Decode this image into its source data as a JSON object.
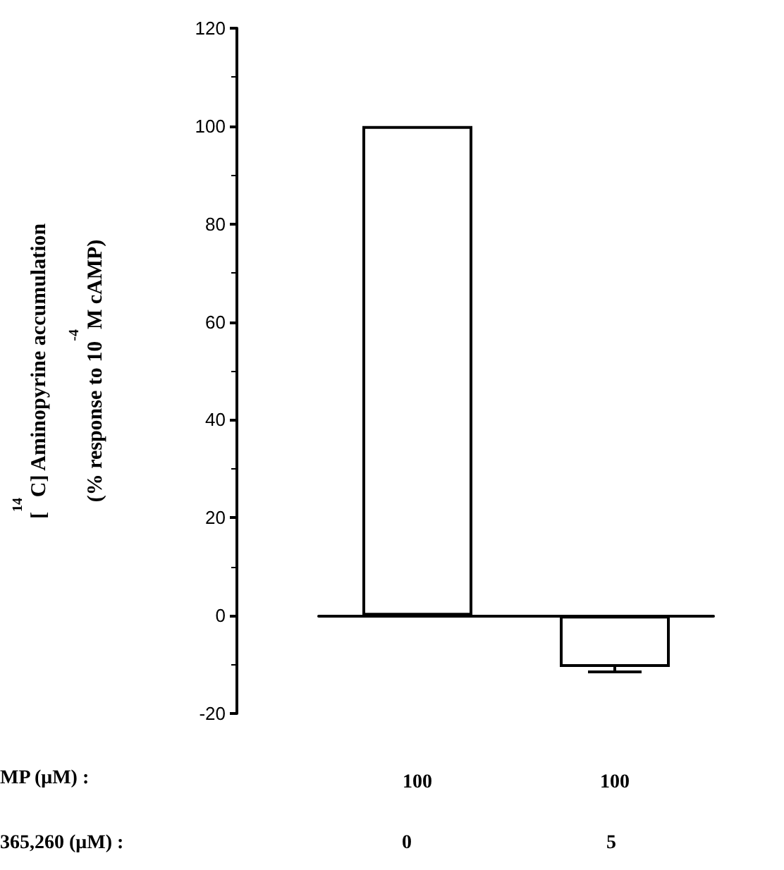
{
  "chart_data": {
    "type": "bar",
    "ylabel": "[$^{14}$C] Aminopyrine accumulation\n(% response to 10$^{-4}$M cAMP)",
    "categories": [
      "100",
      "100"
    ],
    "values": [
      100,
      -10.5
    ],
    "errors": [
      null,
      [
        -11.5,
        -10.5
      ]
    ],
    "color": "#ffffff",
    "ylim": [
      -20,
      120
    ],
    "yticks": [
      -20,
      0,
      20,
      40,
      60,
      80,
      100,
      120
    ],
    "annotations": [
      "MP (μM) :",
      "365,260 (μM) :",
      "0",
      "5"
    ]
  }
}
